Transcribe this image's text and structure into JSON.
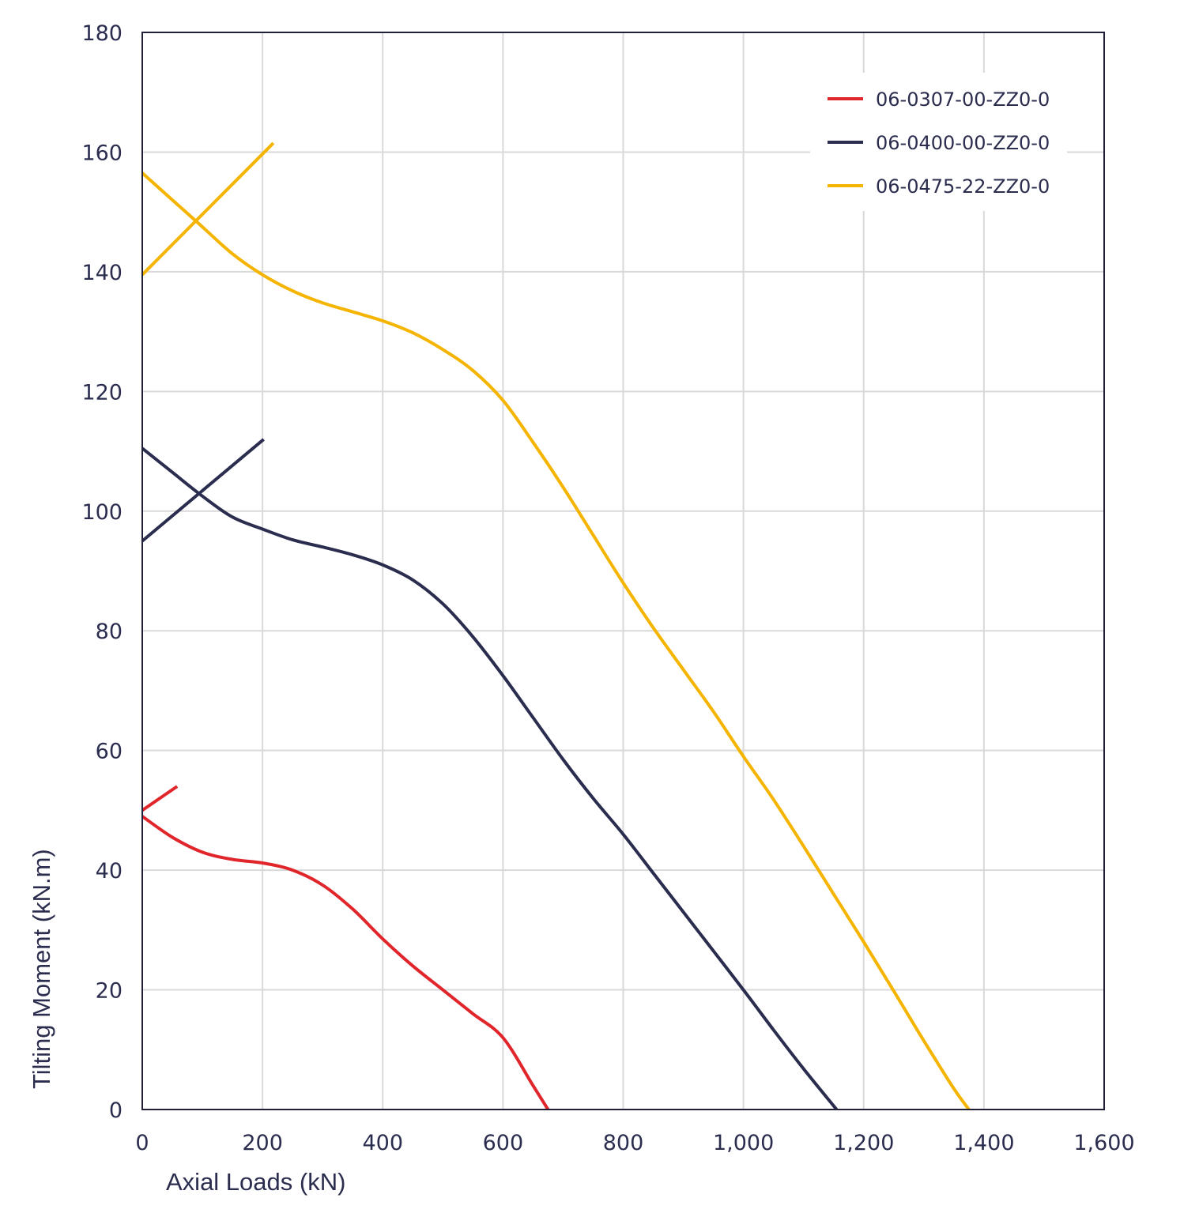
{
  "chart_data": {
    "type": "line",
    "xlabel": "Axial Loads (kN)",
    "ylabel": "Tilting Moment (kN.m)",
    "xlim": [
      0,
      1600
    ],
    "ylim": [
      0,
      180
    ],
    "xticks": [
      "0",
      "200",
      "400",
      "600",
      "800",
      "1,000",
      "1,200",
      "1,400",
      "1,600"
    ],
    "yticks": [
      "0",
      "20",
      "40",
      "60",
      "80",
      "100",
      "120",
      "140",
      "160",
      "180"
    ],
    "grid": true,
    "legend_position": "top-right",
    "series": [
      {
        "name": "06-0307-00-ZZ0-0",
        "color": "#e0252b",
        "curve": [
          [
            0,
            49
          ],
          [
            50,
            45.5
          ],
          [
            100,
            43
          ],
          [
            150,
            41.8
          ],
          [
            200,
            41.2
          ],
          [
            250,
            40
          ],
          [
            300,
            37.5
          ],
          [
            350,
            33.5
          ],
          [
            400,
            28.5
          ],
          [
            450,
            24
          ],
          [
            500,
            20
          ],
          [
            550,
            16
          ],
          [
            600,
            12
          ],
          [
            650,
            4
          ],
          [
            675,
            0
          ]
        ],
        "branch": [
          [
            0,
            50
          ],
          [
            58,
            54
          ]
        ]
      },
      {
        "name": "06-0400-00-ZZ0-0",
        "color": "#2b2d4f",
        "curve": [
          [
            0,
            110.5
          ],
          [
            50,
            106.5
          ],
          [
            100,
            102.5
          ],
          [
            150,
            99
          ],
          [
            200,
            97
          ],
          [
            250,
            95.2
          ],
          [
            300,
            94
          ],
          [
            350,
            92.7
          ],
          [
            400,
            91
          ],
          [
            450,
            88.5
          ],
          [
            500,
            84.5
          ],
          [
            550,
            79
          ],
          [
            600,
            72.5
          ],
          [
            650,
            65.5
          ],
          [
            700,
            58.5
          ],
          [
            750,
            52
          ],
          [
            800,
            46
          ],
          [
            850,
            39.5
          ],
          [
            900,
            33
          ],
          [
            950,
            26.5
          ],
          [
            1000,
            20
          ],
          [
            1050,
            13.3
          ],
          [
            1100,
            6.8
          ],
          [
            1155,
            0
          ]
        ],
        "branch": [
          [
            0,
            95
          ],
          [
            202,
            112
          ]
        ]
      },
      {
        "name": "06-0475-22-ZZ0-0",
        "color": "#f5b400",
        "curve": [
          [
            0,
            156.5
          ],
          [
            50,
            152
          ],
          [
            100,
            147.5
          ],
          [
            150,
            143
          ],
          [
            200,
            139.5
          ],
          [
            250,
            136.8
          ],
          [
            300,
            134.8
          ],
          [
            350,
            133.3
          ],
          [
            400,
            131.8
          ],
          [
            450,
            129.8
          ],
          [
            500,
            127
          ],
          [
            550,
            123.5
          ],
          [
            600,
            118.5
          ],
          [
            650,
            111.5
          ],
          [
            700,
            104
          ],
          [
            750,
            96
          ],
          [
            800,
            88
          ],
          [
            850,
            80.5
          ],
          [
            900,
            73.5
          ],
          [
            950,
            66.5
          ],
          [
            1000,
            59
          ],
          [
            1050,
            51.8
          ],
          [
            1100,
            44
          ],
          [
            1150,
            36
          ],
          [
            1200,
            28
          ],
          [
            1250,
            19.8
          ],
          [
            1300,
            11.5
          ],
          [
            1350,
            3.5
          ],
          [
            1375,
            0
          ]
        ],
        "branch": [
          [
            0,
            139.5
          ],
          [
            218,
            161.5
          ]
        ]
      }
    ]
  }
}
